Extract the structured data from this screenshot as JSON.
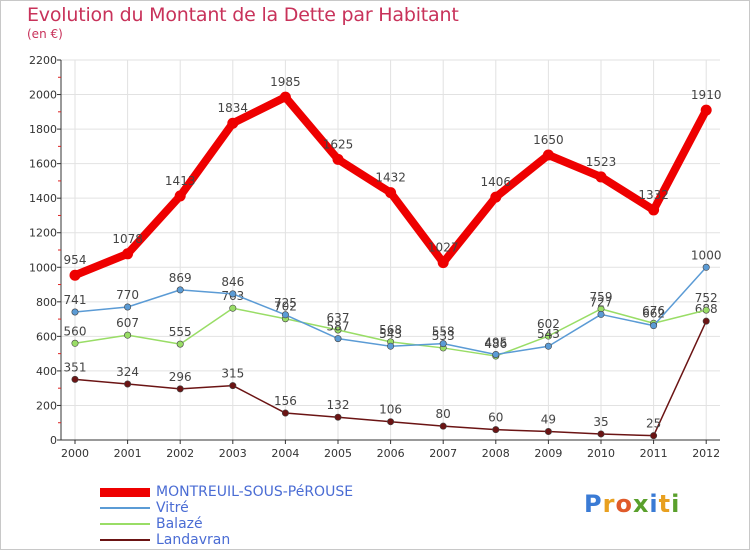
{
  "title": "Evolution du Montant de la Dette par Habitant",
  "unit": "(en €)",
  "logo": {
    "text": "Proxiti",
    "letters": [
      "P",
      "r",
      "o",
      "x",
      "i",
      "t",
      "i"
    ],
    "colors": [
      "#3a7bd5",
      "#e8a020",
      "#e05a2a",
      "#5aa02c",
      "#3a7bd5",
      "#e8a020",
      "#5aa02c"
    ]
  },
  "chart_data": {
    "type": "line",
    "x": [
      "2000",
      "2001",
      "2002",
      "2003",
      "2004",
      "2005",
      "2006",
      "2007",
      "2008",
      "2009",
      "2010",
      "2011",
      "2012"
    ],
    "ylim": [
      0,
      2200
    ],
    "yticks": [
      "0",
      "200",
      "400",
      "600",
      "800",
      "1000",
      "1200",
      "1400",
      "1600",
      "1800",
      "2000",
      "2200"
    ],
    "grid": true,
    "legend": "bottom-left",
    "series": [
      {
        "name": "Landavran",
        "color": "#6b1414",
        "values": [
          351,
          324,
          296,
          315,
          156,
          132,
          106,
          80,
          60,
          49,
          35,
          25,
          688
        ],
        "labels": [
          "351",
          "324",
          "296",
          "315",
          "156",
          "132",
          "106",
          "80",
          "60",
          "49",
          "35",
          "25",
          "688"
        ]
      },
      {
        "name": "Balazé",
        "color": "#99dd66",
        "values": [
          560,
          607,
          555,
          763,
          702,
          637,
          568,
          533,
          486,
          602,
          759,
          676,
          752
        ],
        "labels": [
          "560",
          "607",
          "555",
          "763",
          "702",
          "637",
          "568",
          "533",
          "486",
          "602",
          "759",
          "676",
          "752"
        ]
      },
      {
        "name": "Vitré",
        "color": "#5b9bd5",
        "values": [
          741,
          770,
          869,
          846,
          725,
          587,
          543,
          558,
          495,
          543,
          727,
          662,
          1000
        ],
        "labels": [
          "741",
          "770",
          "869",
          "846",
          "725",
          "587",
          "543",
          "558",
          "495",
          "543",
          "727",
          "662",
          "1000"
        ]
      },
      {
        "name": "MONTREUIL-SOUS-PéROUSE",
        "color": "#ee0000",
        "values": [
          954,
          1078,
          1413,
          1834,
          1985,
          1625,
          1432,
          1027,
          1406,
          1650,
          1523,
          1332,
          1910
        ],
        "labels": [
          "954",
          "1078",
          "1413",
          "1834",
          "1985",
          "1625",
          "1432",
          "1027",
          "1406",
          "1650",
          "1523",
          "1332",
          "1910"
        ]
      }
    ]
  },
  "legend": [
    {
      "label": "MONTREUIL-SOUS-PéROUSE",
      "color": "#ee0000"
    },
    {
      "label": "Vitré",
      "color": "#5b9bd5"
    },
    {
      "label": "Balazé",
      "color": "#99dd66"
    },
    {
      "label": "Landavran",
      "color": "#6b1414"
    }
  ]
}
